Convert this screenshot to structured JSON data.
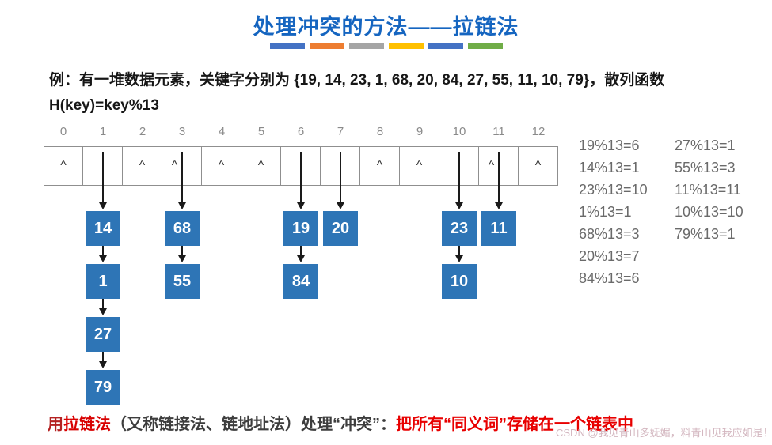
{
  "title": "处理冲突的方法——拉链法",
  "divider_colors": [
    "#4472C4",
    "#ED7D31",
    "#A5A5A5",
    "#FFC000",
    "#4472C4",
    "#70AD47"
  ],
  "problem": {
    "line1": "例：有一堆数据元素，关键字分别为 {19, 14, 23, 1, 68, 20, 84, 27, 55, 11, 10, 79}，散列函数",
    "line2": "H(key)=key%13"
  },
  "hash_table": {
    "node_color": "#2E75B6",
    "null_symbol": "^",
    "cells": [
      {
        "index": "0",
        "symbol": "^",
        "chain": []
      },
      {
        "index": "1",
        "symbol": "",
        "chain": [
          "14",
          "1",
          "27",
          "79"
        ]
      },
      {
        "index": "2",
        "symbol": "^",
        "chain": []
      },
      {
        "index": "3",
        "symbol": "^",
        "chain": [
          "68",
          "55"
        ]
      },
      {
        "index": "4",
        "symbol": "^",
        "chain": []
      },
      {
        "index": "5",
        "symbol": "^",
        "chain": []
      },
      {
        "index": "6",
        "symbol": "",
        "chain": [
          "19",
          "84"
        ]
      },
      {
        "index": "7",
        "symbol": "",
        "chain": [
          "20"
        ]
      },
      {
        "index": "8",
        "symbol": "^",
        "chain": []
      },
      {
        "index": "9",
        "symbol": "^",
        "chain": []
      },
      {
        "index": "10",
        "symbol": "",
        "chain": [
          "23",
          "10"
        ]
      },
      {
        "index": "11",
        "symbol": "^",
        "chain": [
          "11"
        ]
      },
      {
        "index": "12",
        "symbol": "^",
        "chain": []
      }
    ]
  },
  "calculations": {
    "column1": [
      "19%13=6",
      "14%13=1",
      "23%13=10",
      "1%13=1",
      "68%13=3",
      "20%13=7",
      "84%13=6"
    ],
    "column2": [
      "27%13=1",
      "55%13=3",
      "11%13=11",
      "10%13=10",
      "79%13=1"
    ]
  },
  "conclusion": {
    "seg1": "用",
    "seg2": "拉链法",
    "seg3": "（又称链接法、链地址法）处理“冲突”：",
    "seg4": "把所有“同义词”存储在一个链表中"
  },
  "watermark": "CSDN @我见青山多妩媚，料青山见我应如是！",
  "colors": {
    "title": "#1565C0",
    "node": "#2E75B6",
    "highlight_red": "#E80000",
    "calc_gray": "#6A6A6A"
  }
}
